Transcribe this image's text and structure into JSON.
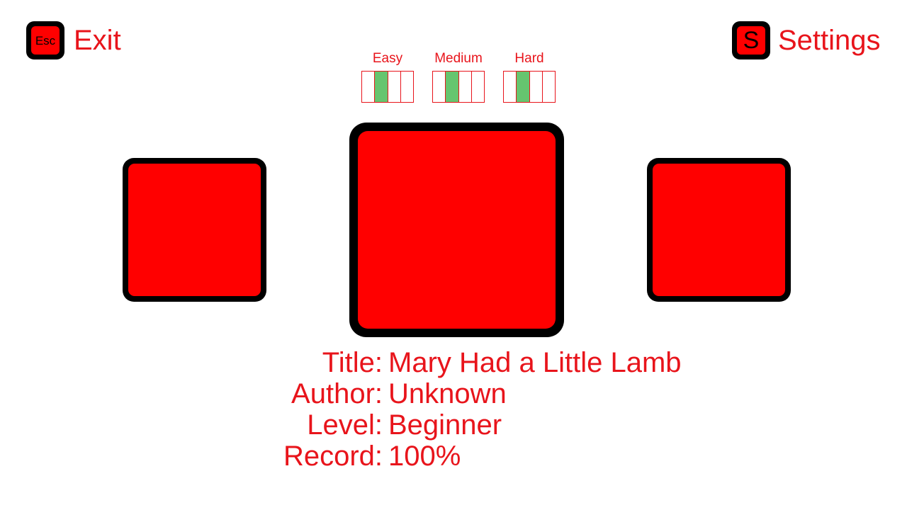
{
  "colors": {
    "accent": "#ff0000",
    "text": "#e8141b",
    "meter_border": "#e8141b",
    "meter_fill": "#66c56f"
  },
  "exit": {
    "key_label": "Esc",
    "label": "Exit"
  },
  "settings": {
    "key_label": "S",
    "label": "Settings"
  },
  "difficulty": {
    "easy": {
      "label": "Easy",
      "filled": [
        false,
        true,
        false,
        false
      ]
    },
    "medium": {
      "label": "Medium",
      "filled": [
        false,
        true,
        false,
        false
      ]
    },
    "hard": {
      "label": "Hard",
      "filled": [
        false,
        true,
        false,
        false
      ]
    }
  },
  "song": {
    "title_label": "Title:",
    "title": "Mary Had a Little Lamb",
    "author_label": "Author:",
    "author": "Unknown",
    "level_label": "Level:",
    "level": "Beginner",
    "record_label": "Record:",
    "record": "100%"
  }
}
